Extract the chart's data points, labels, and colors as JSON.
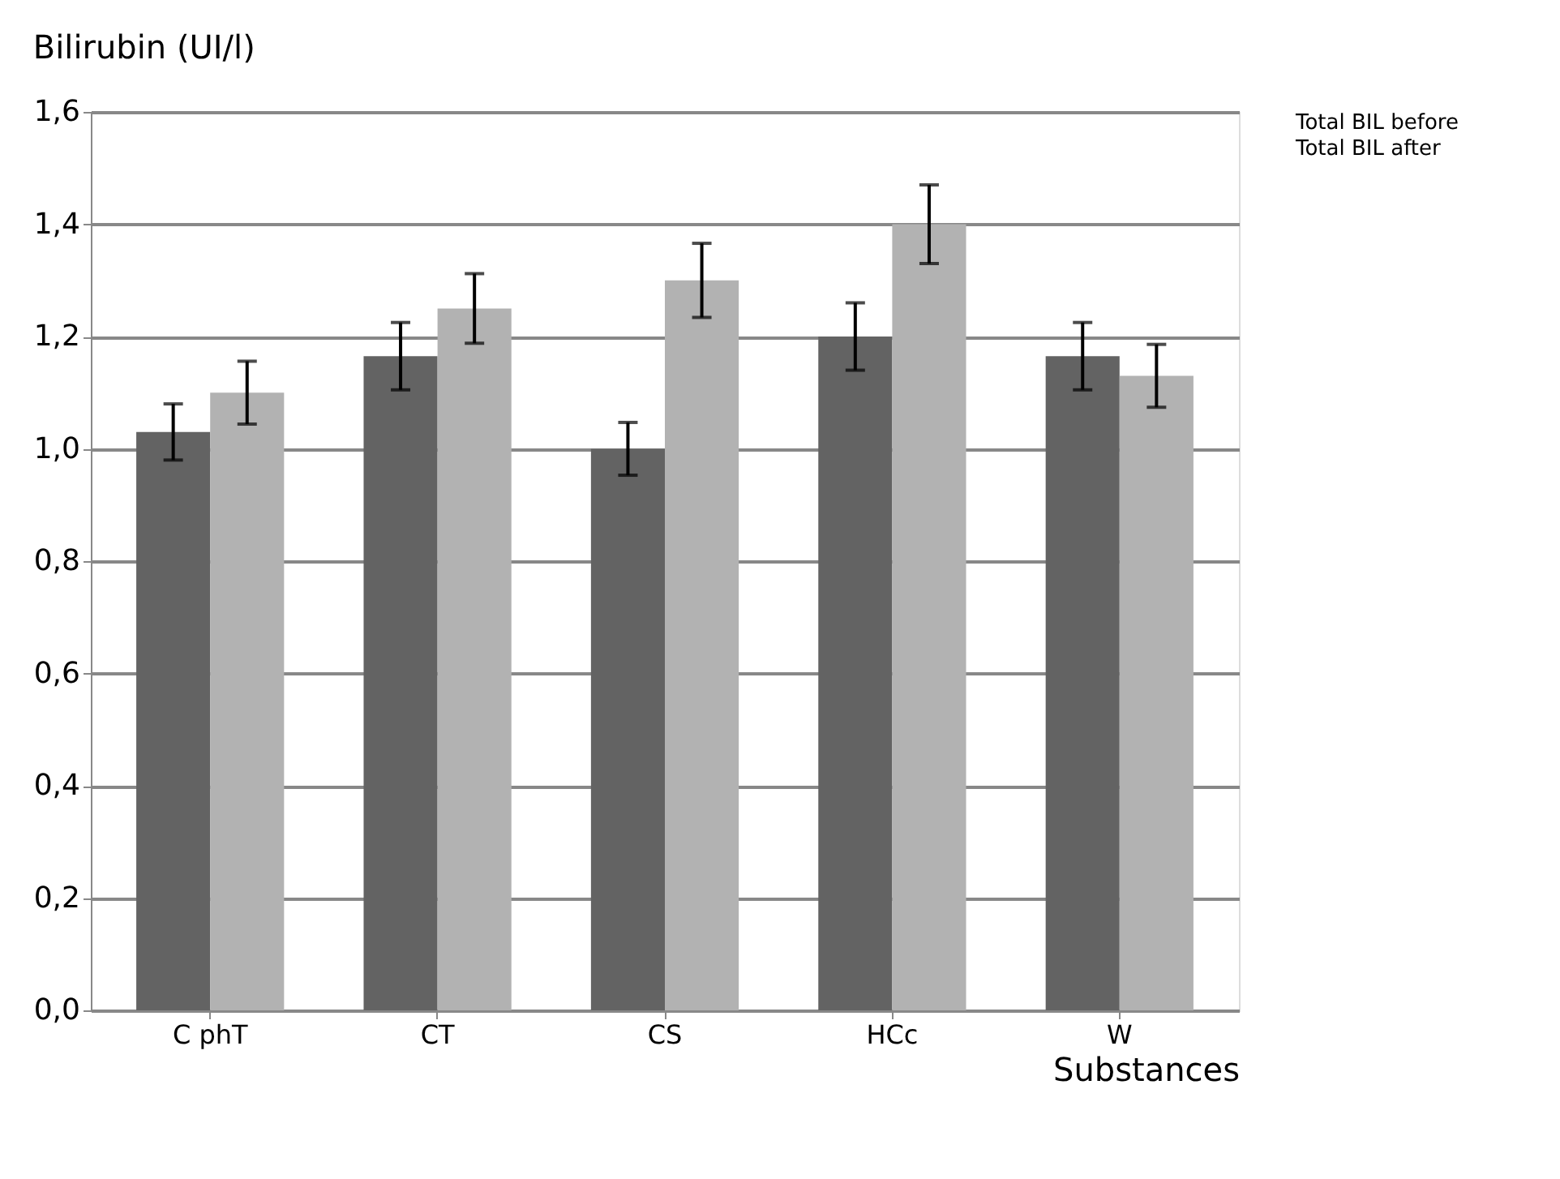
{
  "chart_data": {
    "type": "bar",
    "title": "Bilirubin (UI/l)",
    "xlabel": "Substances",
    "categories": [
      "C phT",
      "CT",
      "CS",
      "HCc",
      "W"
    ],
    "series": [
      {
        "name": "Total BIL before",
        "color": "#636363",
        "values": [
          1.03,
          1.165,
          1.0,
          1.2,
          1.165
        ],
        "errors": [
          0.05,
          0.06,
          0.047,
          0.06,
          0.06
        ]
      },
      {
        "name": "Total BIL after",
        "color": "#b2b2b2",
        "values": [
          1.1,
          1.25,
          1.3,
          1.4,
          1.13
        ],
        "errors": [
          0.056,
          0.062,
          0.066,
          0.07,
          0.056
        ]
      }
    ],
    "ylim": [
      0,
      1.6
    ],
    "yticks": [
      {
        "value": 0,
        "label": "0,0"
      },
      {
        "value": 0.2,
        "label": "0,2"
      },
      {
        "value": 0.4,
        "label": "0,4"
      },
      {
        "value": 0.6,
        "label": "0,6"
      },
      {
        "value": 0.8,
        "label": "0,8"
      },
      {
        "value": 1.0,
        "label": "1,0"
      },
      {
        "value": 1.2,
        "label": "1,2"
      },
      {
        "value": 1.4,
        "label": "1,4"
      },
      {
        "value": 1.6,
        "label": "1,6"
      }
    ],
    "grid": "y",
    "legend": "right"
  }
}
